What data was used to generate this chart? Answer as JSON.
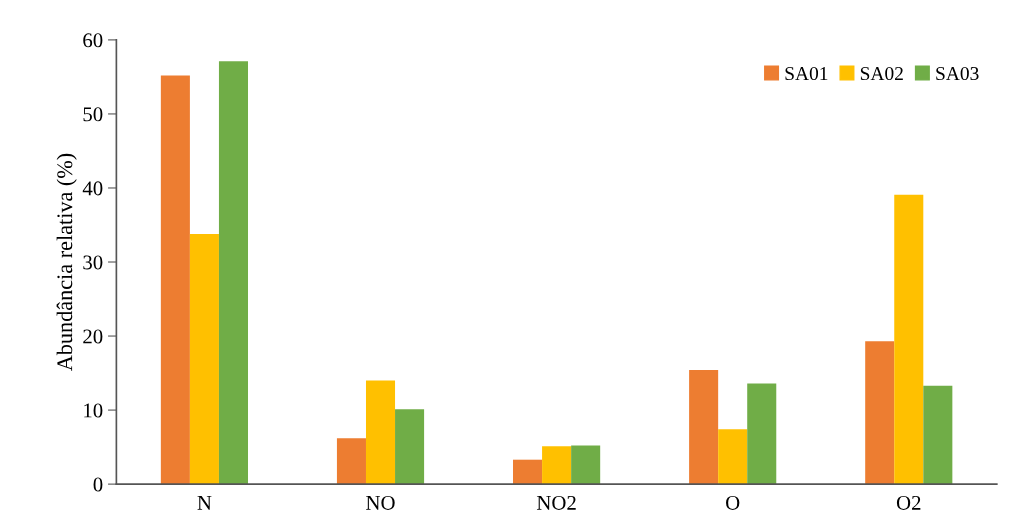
{
  "chart_data": {
    "type": "bar",
    "ylabel": "Abundância relativa (%)",
    "categories": [
      "N",
      "NO",
      "NO2",
      "O",
      "O2"
    ],
    "series": [
      {
        "name": "SA01",
        "color": "#ed7d31",
        "values": [
          55.2,
          6.2,
          3.3,
          15.4,
          19.3
        ]
      },
      {
        "name": "SA02",
        "color": "#ffc000",
        "values": [
          33.8,
          14.0,
          5.1,
          7.4,
          39.1
        ]
      },
      {
        "name": "SA03",
        "color": "#70ad47",
        "values": [
          57.1,
          10.1,
          5.2,
          13.6,
          13.3
        ]
      }
    ],
    "ylim": [
      0,
      60
    ],
    "yticks": [
      0,
      10,
      20,
      30,
      40,
      50,
      60
    ],
    "grid": false,
    "legend": "top right"
  }
}
